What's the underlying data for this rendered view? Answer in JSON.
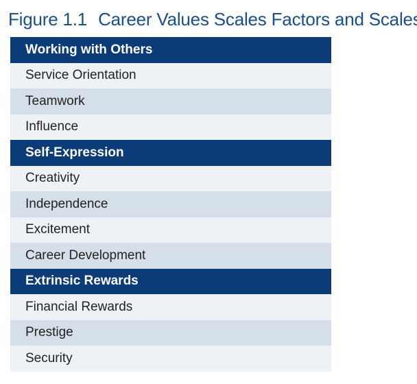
{
  "figure": {
    "label": "Figure 1.1",
    "title": "Career Values Scales Factors and Scales"
  },
  "factors": [
    {
      "name": "Working with Others",
      "scales": [
        "Service Orientation",
        "Teamwork",
        "Influence"
      ]
    },
    {
      "name": "Self-Expression",
      "scales": [
        "Creativity",
        "Independence",
        "Excitement",
        "Career Development"
      ]
    },
    {
      "name": "Extrinsic Rewards",
      "scales": [
        "Financial Rewards",
        "Prestige",
        "Security"
      ]
    }
  ],
  "colors": {
    "title": "#1b4f86",
    "factor_header_bg": "#0c3c77",
    "row_light": "#eef2f7",
    "row_dark": "#d5dfe9"
  }
}
